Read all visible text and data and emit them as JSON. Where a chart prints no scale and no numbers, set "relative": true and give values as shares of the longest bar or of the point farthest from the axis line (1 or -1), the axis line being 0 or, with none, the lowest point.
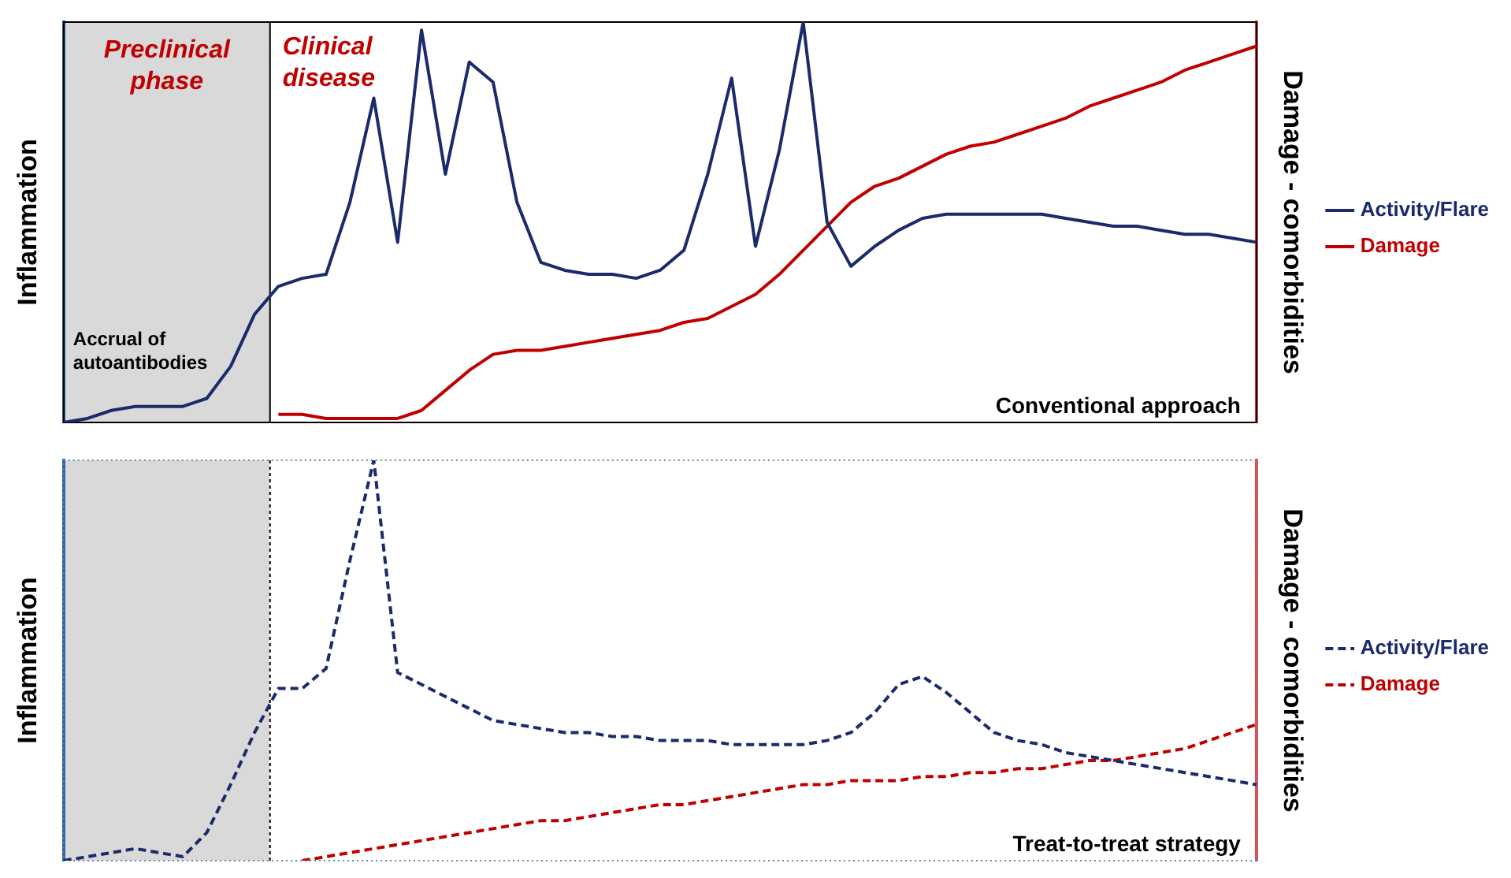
{
  "chart_data": [
    {
      "type": "line",
      "relative": true,
      "ylabel": "Inflammation",
      "y2label": "Damage - comorbidities",
      "legend": "right",
      "annotations": [
        "Preclinical phase",
        "Clinical disease",
        "Accrual of autoantibodies",
        "Conventional approach"
      ],
      "categories": [
        null,
        null,
        null,
        null,
        null,
        null,
        null,
        null,
        null,
        null,
        null,
        null,
        null,
        null,
        null,
        null,
        null,
        null,
        null,
        null,
        null,
        null,
        null,
        null,
        null,
        null,
        null,
        null,
        null,
        null,
        null,
        null,
        null,
        null,
        null,
        null,
        null,
        null,
        null,
        null,
        null,
        null,
        null,
        null,
        null,
        null,
        null,
        null,
        null,
        null,
        null
      ],
      "series": [
        {
          "name": "Activity/Flare",
          "color": "#1b2a6b",
          "line_style": "solid",
          "values": [
            0,
            0.01,
            0.03,
            0.04,
            0.04,
            0.04,
            0.06,
            0.14,
            0.27,
            0.34,
            0.36,
            0.37,
            0.55,
            0.81,
            0.45,
            0.98,
            0.62,
            0.9,
            0.85,
            0.55,
            0.4,
            0.38,
            0.37,
            0.37,
            0.36,
            0.38,
            0.43,
            0.62,
            0.86,
            0.44,
            0.68,
            1,
            0.5,
            0.39,
            0.44,
            0.48,
            0.51,
            0.52,
            0.52,
            0.52,
            0.52,
            0.52,
            0.51,
            0.5,
            0.49,
            0.49,
            0.48,
            0.47,
            0.47,
            0.46,
            0.45
          ]
        },
        {
          "name": "Damage",
          "color": "#c00000",
          "line_style": "solid",
          "values": [
            null,
            null,
            null,
            null,
            null,
            null,
            null,
            null,
            null,
            0.02,
            0.02,
            0.01,
            0.01,
            0.01,
            0.01,
            0.03,
            0.08,
            0.13,
            0.17,
            0.18,
            0.18,
            0.19,
            0.2,
            0.21,
            0.22,
            0.23,
            0.25,
            0.26,
            0.29,
            0.32,
            0.37,
            0.43,
            0.49,
            0.55,
            0.59,
            0.61,
            0.64,
            0.67,
            0.69,
            0.7,
            0.72,
            0.74,
            0.76,
            0.79,
            0.81,
            0.83,
            0.85,
            0.88,
            0.9,
            0.92,
            0.94
          ]
        }
      ]
    },
    {
      "type": "line",
      "relative": true,
      "ylabel": "Inflammation",
      "y2label": "Damage - comorbidities",
      "legend": "right",
      "annotations": [
        "Treat-to-treat strategy"
      ],
      "categories": [
        null,
        null,
        null,
        null,
        null,
        null,
        null,
        null,
        null,
        null,
        null,
        null,
        null,
        null,
        null,
        null,
        null,
        null,
        null,
        null,
        null,
        null,
        null,
        null,
        null,
        null,
        null,
        null,
        null,
        null,
        null,
        null,
        null,
        null,
        null,
        null,
        null,
        null,
        null,
        null,
        null,
        null,
        null,
        null,
        null,
        null,
        null,
        null,
        null,
        null,
        null
      ],
      "series": [
        {
          "name": "Activity/Flare",
          "color": "#1b2a6b",
          "line_style": "dashed",
          "values": [
            0,
            0.01,
            0.02,
            0.03,
            0.02,
            0.01,
            0.07,
            0.19,
            0.32,
            0.43,
            0.43,
            0.48,
            0.75,
            1,
            0.47,
            0.44,
            0.41,
            0.38,
            0.35,
            0.34,
            0.33,
            0.32,
            0.32,
            0.31,
            0.31,
            0.3,
            0.3,
            0.3,
            0.29,
            0.29,
            0.29,
            0.29,
            0.3,
            0.32,
            0.37,
            0.44,
            0.46,
            0.42,
            0.37,
            0.32,
            0.3,
            0.29,
            0.27,
            0.26,
            0.25,
            0.24,
            0.23,
            0.22,
            0.21,
            0.2,
            0.19
          ]
        },
        {
          "name": "Damage",
          "color": "#c00000",
          "line_style": "dashed",
          "values": [
            null,
            null,
            null,
            null,
            null,
            null,
            null,
            null,
            null,
            null,
            0,
            0.01,
            0.02,
            0.03,
            0.04,
            0.05,
            0.06,
            0.07,
            0.08,
            0.09,
            0.1,
            0.1,
            0.11,
            0.12,
            0.13,
            0.14,
            0.14,
            0.15,
            0.16,
            0.17,
            0.18,
            0.19,
            0.19,
            0.2,
            0.2,
            0.2,
            0.21,
            0.21,
            0.22,
            0.22,
            0.23,
            0.23,
            0.24,
            0.25,
            0.25,
            0.26,
            0.27,
            0.28,
            0.3,
            0.32,
            0.34
          ]
        }
      ]
    }
  ]
}
